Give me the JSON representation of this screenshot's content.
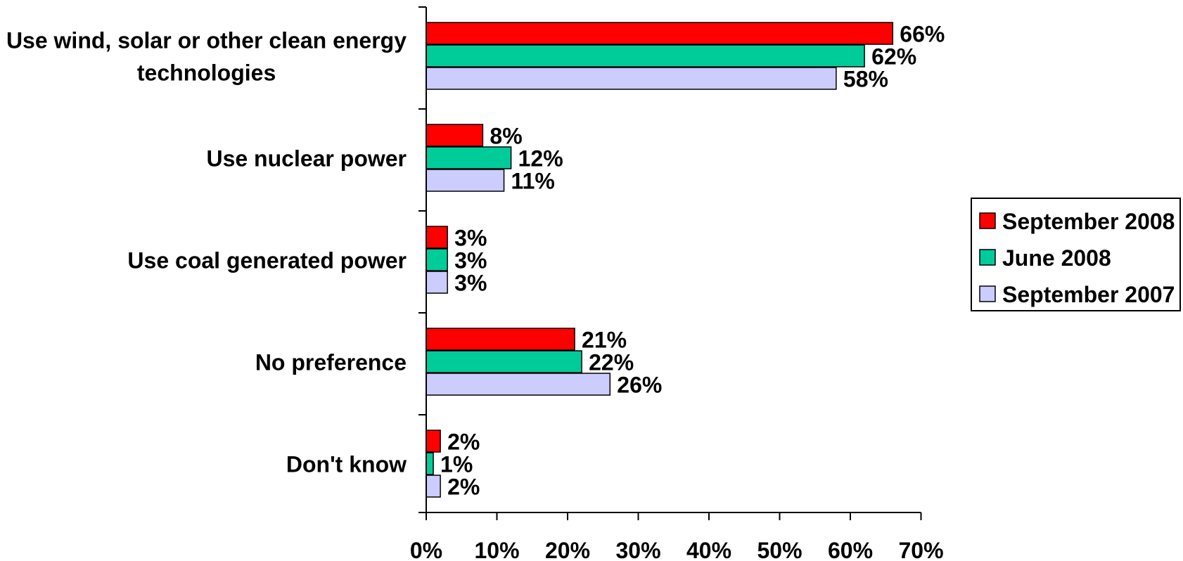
{
  "chart_data": {
    "type": "bar",
    "orientation": "horizontal",
    "categories": [
      [
        "Use wind, solar or other clean energy",
        "technologies"
      ],
      [
        "Use nuclear power"
      ],
      [
        "Use coal generated power"
      ],
      [
        "No preference"
      ],
      [
        "Don't know"
      ]
    ],
    "series": [
      {
        "name": "September 2008",
        "color": "#ff0000",
        "values": [
          66,
          8,
          3,
          21,
          2
        ]
      },
      {
        "name": "June 2008",
        "color": "#00cc99",
        "values": [
          62,
          12,
          3,
          22,
          1
        ]
      },
      {
        "name": "September 2007",
        "color": "#ccccff",
        "values": [
          58,
          11,
          3,
          26,
          2
        ]
      }
    ],
    "value_suffix": "%",
    "xlim": [
      0,
      70
    ],
    "x_ticks": [
      "0%",
      "10%",
      "20%",
      "30%",
      "40%",
      "50%",
      "60%",
      "70%"
    ],
    "legend_position": "right",
    "grid": false,
    "title": "",
    "xlabel": "",
    "ylabel": ""
  }
}
